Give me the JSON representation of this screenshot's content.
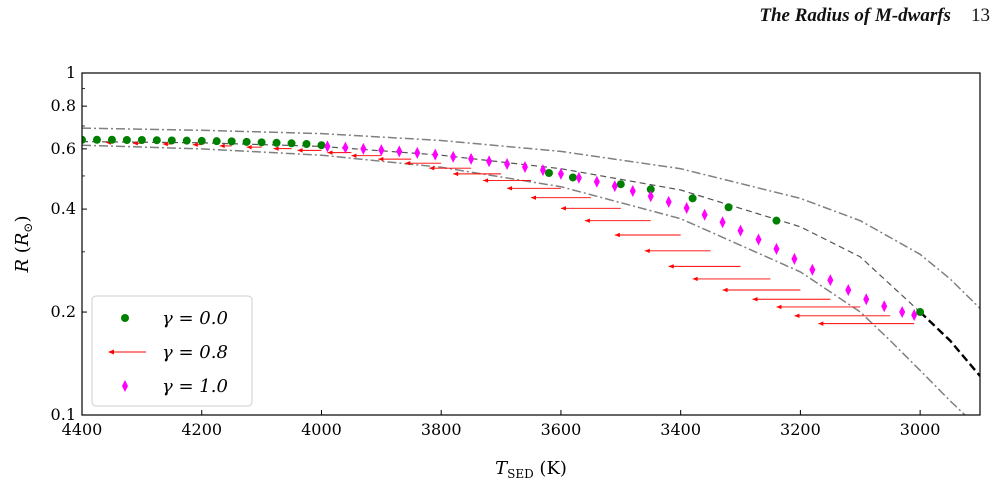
{
  "header": {
    "title": "The Radius of M-dwarfs",
    "page_number": "13"
  },
  "chart_data": {
    "type": "scatter",
    "xlabel": "T_SED (K)",
    "ylabel": "R (R⊙)",
    "xlim": [
      4400,
      2900
    ],
    "ylim": [
      0.1,
      1.0
    ],
    "y_scale": "log",
    "x_ticks": [
      4400,
      4200,
      4000,
      3800,
      3600,
      3400,
      3200,
      3000
    ],
    "y_ticks": [
      0.1,
      0.2,
      0.4,
      0.6,
      0.8,
      1
    ],
    "y_tick_labels": [
      "0.1",
      "0.2",
      "0.4",
      "0.6",
      "0.8",
      "1"
    ],
    "legend": {
      "placement": "lower-left",
      "entries": [
        {
          "label": "γ = 0.0",
          "marker": "circle",
          "color": "#008000"
        },
        {
          "label": "γ = 0.8",
          "marker": "arrow",
          "color": "#ff0000"
        },
        {
          "label": "γ = 1.0",
          "marker": "thin-diamond",
          "color": "#ff00ff"
        }
      ]
    },
    "colors": {
      "gamma0": "#008000",
      "gamma08": "#ff0000",
      "gamma1": "#ff00ff",
      "upper_bound": "#808080",
      "lower_bound": "#808080",
      "model": "#000000"
    },
    "reference_curves": {
      "model_curve": [
        [
          4400,
          0.63
        ],
        [
          4200,
          0.625
        ],
        [
          4000,
          0.61
        ],
        [
          3800,
          0.575
        ],
        [
          3600,
          0.525
        ],
        [
          3400,
          0.455
        ],
        [
          3200,
          0.355
        ],
        [
          3100,
          0.29
        ],
        [
          3000,
          0.2
        ],
        [
          2950,
          0.165
        ],
        [
          2900,
          0.13
        ]
      ],
      "upper_dashdot": [
        [
          4400,
          0.69
        ],
        [
          4200,
          0.68
        ],
        [
          4000,
          0.665
        ],
        [
          3800,
          0.635
        ],
        [
          3600,
          0.59
        ],
        [
          3400,
          0.525
        ],
        [
          3200,
          0.43
        ],
        [
          3100,
          0.37
        ],
        [
          3000,
          0.295
        ],
        [
          2950,
          0.25
        ],
        [
          2900,
          0.205
        ]
      ],
      "lower_dashdot": [
        [
          4400,
          0.615
        ],
        [
          4200,
          0.6
        ],
        [
          4000,
          0.575
        ],
        [
          3800,
          0.53
        ],
        [
          3600,
          0.465
        ],
        [
          3400,
          0.375
        ],
        [
          3200,
          0.262
        ],
        [
          3100,
          0.2
        ],
        [
          3050,
          0.165
        ],
        [
          3000,
          0.135
        ],
        [
          2950,
          0.11
        ],
        [
          2925,
          0.1
        ]
      ]
    },
    "series": [
      {
        "name": "γ = 0.0",
        "x": [
          4400,
          4375,
          4350,
          4325,
          4300,
          4275,
          4250,
          4225,
          4200,
          4175,
          4150,
          4125,
          4100,
          4075,
          4050,
          4025,
          4000,
          3620,
          3580,
          3500,
          3450,
          3380,
          3320,
          3240,
          3000
        ],
        "y": [
          0.638,
          0.638,
          0.638,
          0.637,
          0.637,
          0.636,
          0.635,
          0.634,
          0.633,
          0.632,
          0.631,
          0.629,
          0.627,
          0.625,
          0.623,
          0.62,
          0.615,
          0.51,
          0.495,
          0.473,
          0.457,
          0.43,
          0.405,
          0.37,
          0.2
        ]
      },
      {
        "name": "γ = 0.8",
        "x_start": [
          4400,
          4350,
          4300,
          4250,
          4200,
          4150,
          4100,
          4050,
          4000,
          3950,
          3900,
          3850,
          3800,
          3750,
          3700,
          3650,
          3600,
          3550,
          3500,
          3450,
          3400,
          3350,
          3300,
          3250,
          3200,
          3150,
          3100,
          3050,
          3010
        ],
        "x_end": [
          4400,
          4360,
          4315,
          4265,
          4215,
          4170,
          4125,
          4080,
          4040,
          3990,
          3950,
          3905,
          3860,
          3820,
          3780,
          3730,
          3690,
          3650,
          3600,
          3560,
          3510,
          3460,
          3420,
          3380,
          3330,
          3280,
          3240,
          3210,
          3170
        ],
        "y": [
          0.628,
          0.626,
          0.623,
          0.62,
          0.617,
          0.612,
          0.607,
          0.601,
          0.594,
          0.585,
          0.573,
          0.56,
          0.545,
          0.527,
          0.507,
          0.485,
          0.46,
          0.432,
          0.402,
          0.37,
          0.336,
          0.302,
          0.272,
          0.25,
          0.232,
          0.218,
          0.207,
          0.195,
          0.185
        ]
      },
      {
        "name": "γ = 1.0",
        "x": [
          3990,
          3960,
          3930,
          3900,
          3870,
          3840,
          3810,
          3780,
          3750,
          3720,
          3690,
          3660,
          3630,
          3600,
          3570,
          3540,
          3510,
          3480,
          3450,
          3420,
          3390,
          3360,
          3330,
          3300,
          3270,
          3240,
          3210,
          3180,
          3150,
          3120,
          3090,
          3060,
          3030,
          3010
        ],
        "y": [
          0.61,
          0.605,
          0.6,
          0.595,
          0.59,
          0.584,
          0.577,
          0.569,
          0.561,
          0.552,
          0.542,
          0.531,
          0.52,
          0.507,
          0.494,
          0.481,
          0.467,
          0.452,
          0.436,
          0.42,
          0.403,
          0.385,
          0.366,
          0.346,
          0.326,
          0.306,
          0.286,
          0.266,
          0.248,
          0.232,
          0.218,
          0.208,
          0.2,
          0.196
        ]
      }
    ]
  }
}
